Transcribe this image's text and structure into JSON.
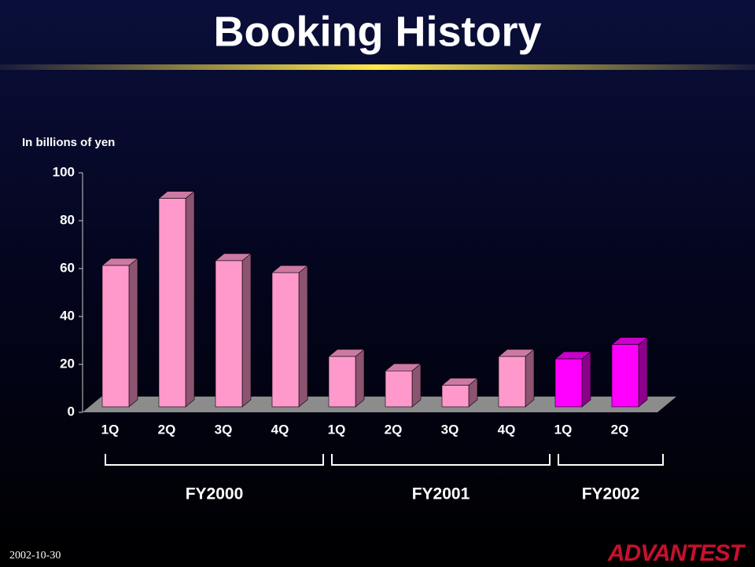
{
  "title": "Booking History",
  "footer": {
    "date": "2002-10-30",
    "logo": "ADVANTEST"
  },
  "chart_data": {
    "type": "bar3d",
    "ylabel": "In billions of yen",
    "ylim": [
      0,
      100
    ],
    "yticks": [
      0,
      20,
      40,
      60,
      80,
      100
    ],
    "series": [
      {
        "name": "FY2000",
        "color": "#ff99cc",
        "categories": [
          "1Q",
          "2Q",
          "3Q",
          "4Q"
        ],
        "values": [
          59,
          87,
          61,
          56
        ]
      },
      {
        "name": "FY2001",
        "color": "#ff99cc",
        "categories": [
          "1Q",
          "2Q",
          "3Q",
          "4Q"
        ],
        "values": [
          21,
          15,
          9,
          21
        ]
      },
      {
        "name": "FY2002",
        "color": "#ff00ff",
        "categories": [
          "1Q",
          "2Q"
        ],
        "values": [
          20,
          26
        ]
      }
    ]
  }
}
